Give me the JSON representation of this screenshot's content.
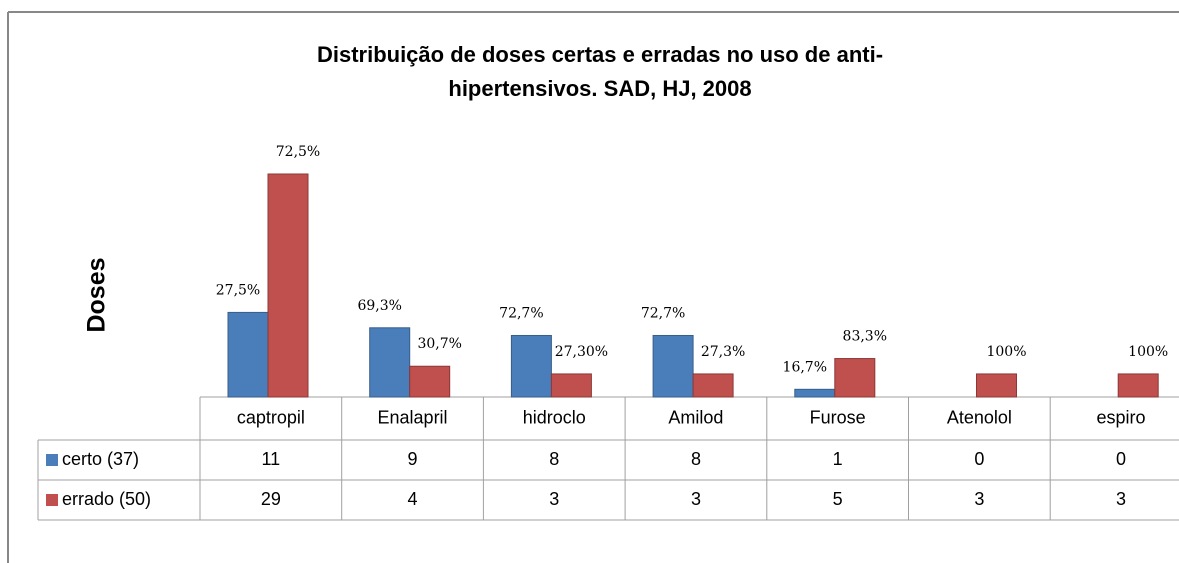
{
  "chart_data": {
    "type": "bar",
    "title": "Distribuição de doses certas e erradas no uso de anti-hipertensivos. SAD, HJ, 2008",
    "title_lines": [
      "Distribuição de doses certas e erradas no uso de anti-",
      "hipertensivos. SAD, HJ, 2008"
    ],
    "y_label": "Doses",
    "categories": [
      "captropil",
      "Enalapril",
      "hidroclo",
      "Amilod",
      "Furose",
      "Atenolol",
      "espiro"
    ],
    "series": [
      {
        "name": "certo (37)",
        "color": "#4a7ebb",
        "values": [
          11,
          9,
          8,
          8,
          1,
          0,
          0
        ],
        "percent_labels": [
          "27,5%",
          "69,3%",
          "72,7%",
          "72,7%",
          "16,7%",
          null,
          null
        ]
      },
      {
        "name": "errado (50)",
        "color": "#c0504d",
        "values": [
          29,
          4,
          3,
          3,
          5,
          3,
          3
        ],
        "percent_labels": [
          "72,5%",
          "30,7%",
          "27,30%",
          "27,3%",
          "83,3%",
          "100%",
          "100%"
        ]
      }
    ]
  }
}
